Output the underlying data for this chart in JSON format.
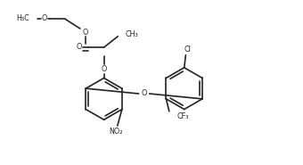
{
  "bg_color": "#ffffff",
  "line_color": "#222222",
  "line_width": 1.2,
  "fig_width": 3.4,
  "fig_height": 1.85,
  "dpi": 100,
  "xlim": [
    0,
    10
  ],
  "ylim": [
    0,
    5.5
  ]
}
